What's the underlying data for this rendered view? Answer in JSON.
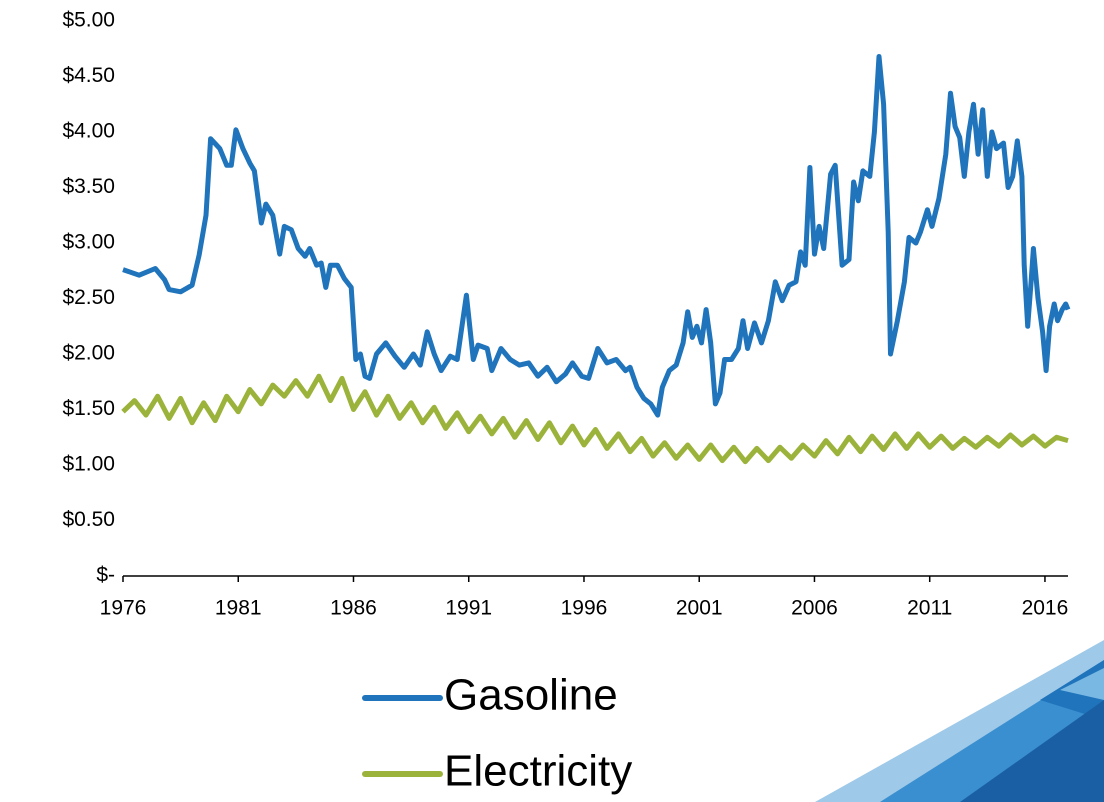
{
  "chart_data": {
    "type": "line",
    "xlim": [
      1976,
      2017
    ],
    "xticks": [
      1976,
      1981,
      1986,
      1991,
      1996,
      2001,
      2006,
      2011,
      2016
    ],
    "ylim": [
      0,
      5
    ],
    "yticks": [
      {
        "value": 0,
        "label": "$-"
      },
      {
        "value": 0.5,
        "label": "$0.50"
      },
      {
        "value": 1,
        "label": "$1.00"
      },
      {
        "value": 1.5,
        "label": "$1.50"
      },
      {
        "value": 2,
        "label": "$2.00"
      },
      {
        "value": 2.5,
        "label": "$2.50"
      },
      {
        "value": 3,
        "label": "$3.00"
      },
      {
        "value": 3.5,
        "label": "$3.50"
      },
      {
        "value": 4,
        "label": "$4.00"
      },
      {
        "value": 4.5,
        "label": "$4.50"
      },
      {
        "value": 5,
        "label": "$5.00"
      }
    ],
    "grid": false,
    "series": [
      {
        "name": "Gasoline",
        "color": "#1f74bb",
        "x": [
          1976.0,
          1976.7,
          1977.4,
          1977.8,
          1978.0,
          1978.5,
          1979.0,
          1979.3,
          1979.6,
          1979.8,
          1980.2,
          1980.5,
          1980.7,
          1980.9,
          1981.2,
          1981.5,
          1981.7,
          1982.0,
          1982.2,
          1982.5,
          1982.8,
          1983.0,
          1983.3,
          1983.6,
          1983.9,
          1984.1,
          1984.4,
          1984.6,
          1984.8,
          1985.0,
          1985.3,
          1985.6,
          1985.9,
          1986.1,
          1986.3,
          1986.5,
          1986.7,
          1987.0,
          1987.4,
          1987.8,
          1988.2,
          1988.6,
          1988.9,
          1989.2,
          1989.5,
          1989.8,
          1990.2,
          1990.5,
          1990.9,
          1991.2,
          1991.4,
          1991.8,
          1992.0,
          1992.4,
          1992.8,
          1993.2,
          1993.6,
          1994.0,
          1994.4,
          1994.8,
          1995.2,
          1995.5,
          1995.9,
          1996.2,
          1996.6,
          1997.0,
          1997.4,
          1997.8,
          1998.0,
          1998.3,
          1998.6,
          1998.9,
          1999.2,
          1999.4,
          1999.7,
          2000.0,
          2000.3,
          2000.5,
          2000.7,
          2000.9,
          2001.1,
          2001.3,
          2001.5,
          2001.7,
          2001.9,
          2002.1,
          2002.4,
          2002.7,
          2002.9,
          2003.1,
          2003.4,
          2003.7,
          2004.0,
          2004.3,
          2004.6,
          2004.9,
          2005.2,
          2005.4,
          2005.6,
          2005.8,
          2006.0,
          2006.2,
          2006.4,
          2006.7,
          2006.9,
          2007.2,
          2007.5,
          2007.7,
          2007.9,
          2008.1,
          2008.4,
          2008.6,
          2008.8,
          2009.0,
          2009.2,
          2009.3,
          2009.6,
          2009.9,
          2010.1,
          2010.4,
          2010.6,
          2010.9,
          2011.1,
          2011.4,
          2011.7,
          2011.9,
          2012.1,
          2012.3,
          2012.5,
          2012.7,
          2012.9,
          2013.1,
          2013.3,
          2013.5,
          2013.7,
          2013.9,
          2014.2,
          2014.4,
          2014.6,
          2014.8,
          2015.0,
          2015.1,
          2015.25,
          2015.4,
          2015.5,
          2015.7,
          2015.9,
          2016.05,
          2016.2,
          2016.4,
          2016.55,
          2016.75,
          2016.9,
          2017.0
        ],
        "values": [
          2.76,
          2.71,
          2.77,
          2.67,
          2.58,
          2.56,
          2.62,
          2.89,
          3.25,
          3.94,
          3.85,
          3.7,
          3.7,
          4.02,
          3.85,
          3.72,
          3.65,
          3.18,
          3.35,
          3.25,
          2.9,
          3.15,
          3.12,
          2.95,
          2.88,
          2.95,
          2.8,
          2.82,
          2.6,
          2.8,
          2.8,
          2.68,
          2.6,
          1.95,
          2.0,
          1.8,
          1.78,
          2.0,
          2.1,
          1.98,
          1.88,
          2.0,
          1.9,
          2.2,
          2.0,
          1.85,
          1.98,
          1.95,
          2.53,
          1.95,
          2.08,
          2.05,
          1.85,
          2.05,
          1.95,
          1.9,
          1.92,
          1.8,
          1.88,
          1.75,
          1.82,
          1.92,
          1.8,
          1.78,
          2.05,
          1.92,
          1.95,
          1.85,
          1.88,
          1.7,
          1.6,
          1.55,
          1.45,
          1.7,
          1.85,
          1.9,
          2.1,
          2.38,
          2.15,
          2.25,
          2.1,
          2.4,
          2.1,
          1.55,
          1.65,
          1.95,
          1.95,
          2.05,
          2.3,
          2.05,
          2.28,
          2.1,
          2.3,
          2.65,
          2.48,
          2.62,
          2.65,
          2.92,
          2.8,
          3.68,
          2.9,
          3.15,
          2.95,
          3.62,
          3.7,
          2.8,
          2.85,
          3.55,
          3.38,
          3.65,
          3.6,
          4.0,
          4.68,
          4.25,
          3.1,
          2.0,
          2.3,
          2.65,
          3.05,
          3.0,
          3.1,
          3.3,
          3.15,
          3.4,
          3.8,
          4.35,
          4.05,
          3.95,
          3.6,
          4.0,
          4.25,
          3.8,
          4.2,
          3.6,
          4.0,
          3.85,
          3.9,
          3.5,
          3.6,
          3.92,
          3.6,
          2.8,
          2.25,
          2.65,
          2.95,
          2.5,
          2.2,
          1.85,
          2.25,
          2.45,
          2.3,
          2.4,
          2.45,
          2.4
        ]
      },
      {
        "name": "Electricity",
        "color": "#9bb33b",
        "x": [
          1976,
          1976.5,
          1977,
          1977.5,
          1978,
          1978.5,
          1979,
          1979.5,
          1980,
          1980.5,
          1981,
          1981.5,
          1982,
          1982.5,
          1983,
          1983.5,
          1984,
          1984.5,
          1985,
          1985.5,
          1986,
          1986.5,
          1987,
          1987.5,
          1988,
          1988.5,
          1989,
          1989.5,
          1990,
          1990.5,
          1991,
          1991.5,
          1992,
          1992.5,
          1993,
          1993.5,
          1994,
          1994.5,
          1995,
          1995.5,
          1996,
          1996.5,
          1997,
          1997.5,
          1998,
          1998.5,
          1999,
          1999.5,
          2000,
          2000.5,
          2001,
          2001.5,
          2002,
          2002.5,
          2003,
          2003.5,
          2004,
          2004.5,
          2005,
          2005.5,
          2006,
          2006.5,
          2007,
          2007.5,
          2008,
          2008.5,
          2009,
          2009.5,
          2010,
          2010.5,
          2011,
          2011.5,
          2012,
          2012.5,
          2013,
          2013.5,
          2014,
          2014.5,
          2015,
          2015.5,
          2016,
          2016.5,
          2017
        ],
        "values": [
          1.48,
          1.58,
          1.45,
          1.62,
          1.42,
          1.6,
          1.38,
          1.56,
          1.4,
          1.62,
          1.48,
          1.68,
          1.55,
          1.72,
          1.62,
          1.76,
          1.62,
          1.8,
          1.58,
          1.78,
          1.5,
          1.66,
          1.45,
          1.62,
          1.42,
          1.56,
          1.38,
          1.52,
          1.33,
          1.47,
          1.3,
          1.44,
          1.28,
          1.42,
          1.25,
          1.4,
          1.23,
          1.38,
          1.2,
          1.35,
          1.18,
          1.32,
          1.15,
          1.28,
          1.12,
          1.24,
          1.08,
          1.2,
          1.06,
          1.18,
          1.05,
          1.18,
          1.04,
          1.16,
          1.03,
          1.15,
          1.04,
          1.16,
          1.06,
          1.18,
          1.08,
          1.22,
          1.1,
          1.25,
          1.12,
          1.26,
          1.14,
          1.28,
          1.15,
          1.28,
          1.16,
          1.26,
          1.15,
          1.24,
          1.16,
          1.25,
          1.17,
          1.27,
          1.18,
          1.26,
          1.17,
          1.25,
          1.22
        ]
      }
    ]
  }
}
